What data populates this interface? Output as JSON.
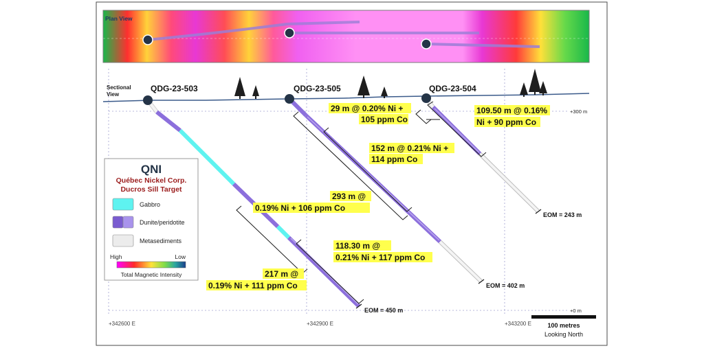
{
  "plan_view": {
    "label": "Plan View"
  },
  "section": {
    "label_line1": "Sectional",
    "label_line2": "View"
  },
  "holes": [
    {
      "name": "QDG-23-503",
      "eom": "EOM = 450 m"
    },
    {
      "name": "QDG-23-505",
      "eom": "EOM = 402 m"
    },
    {
      "name": "QDG-23-504",
      "eom": "EOM = 243 m"
    }
  ],
  "elevations": [
    {
      "label": "+300 m"
    },
    {
      "label": "+0 m"
    }
  ],
  "eastings": [
    {
      "label": "+342600 E"
    },
    {
      "label": "+342900 E"
    },
    {
      "label": "+343200 E"
    }
  ],
  "intercepts": [
    {
      "line1": "29 m @ 0.20% Ni +",
      "line2": "105 ppm Co"
    },
    {
      "line1": "109.50 m @ 0.16%",
      "line2": "Ni + 90 ppm Co"
    },
    {
      "line1": "152 m @ 0.21% Ni +",
      "line2": "114 ppm Co"
    },
    {
      "line1": "293 m @",
      "line2": "0.19% Ni + 106 ppm Co"
    },
    {
      "line1": "118.30 m @",
      "line2": "0.21% Ni + 117 ppm Co"
    },
    {
      "line1": "217 m @",
      "line2": "0.19% Ni + 111 ppm Co"
    }
  ],
  "legend": {
    "logo": "QNI",
    "company": "Québec Nickel Corp.",
    "target": "Ducros Sill Target",
    "items": [
      {
        "label": "Gabbro",
        "color": "#5ef3f0"
      },
      {
        "label": "Dunite/peridotite",
        "color": "#8c6fdc"
      },
      {
        "label": "Metasediments",
        "color": "#ececec"
      }
    ],
    "ramp_high": "High",
    "ramp_low": "Low",
    "ramp_title": "Total Magnetic Intensity"
  },
  "scale": {
    "label": "100 metres",
    "direction": "Looking North"
  },
  "colors": {
    "highlight": "#ffff4d",
    "collar": "#243447",
    "dunite": "#8c6fdc",
    "gabbro": "#5ef3f0",
    "metased": "#ececec"
  }
}
